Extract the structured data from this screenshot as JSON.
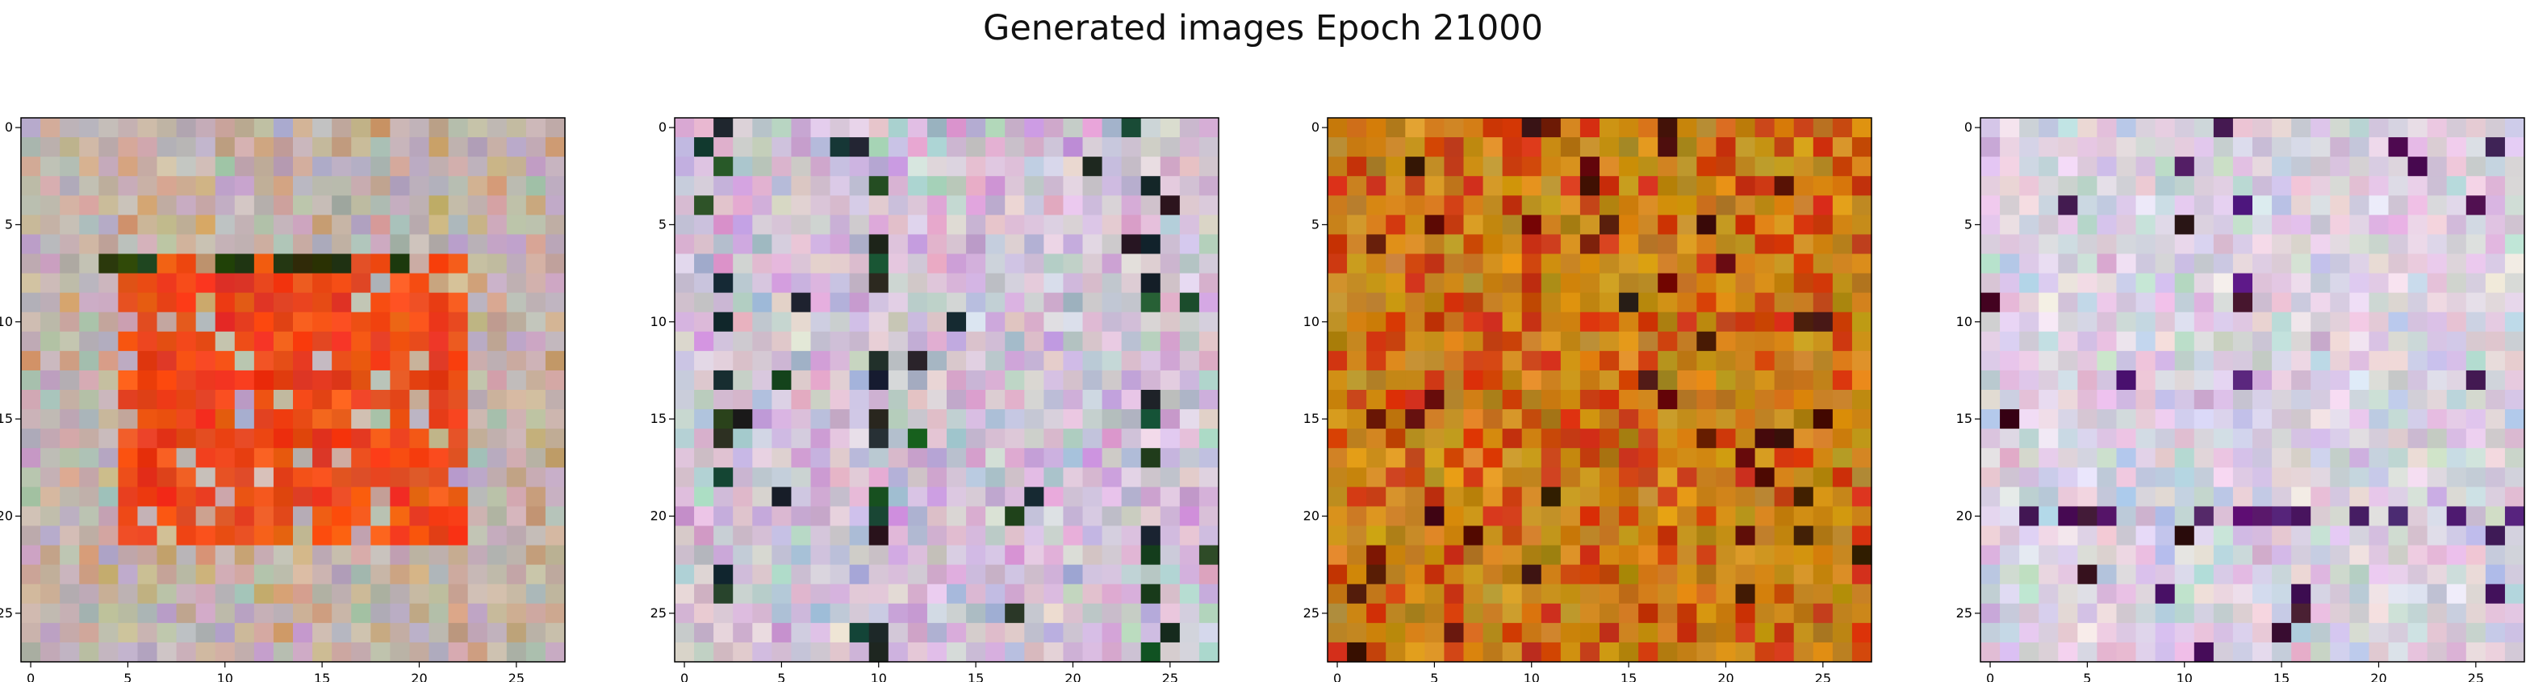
{
  "figure": {
    "title": "Generated images Epoch 21000"
  },
  "chart_data": [
    {
      "type": "heatmap",
      "subject": "generated 28x28 RGB image",
      "grid_size": [
        28,
        28
      ],
      "palette": "red/orange square on pastel noisy background",
      "colors": {
        "background": "#c8b8b8",
        "accent": "#e83418",
        "dark": "#2a2010"
      },
      "xticks": [
        0,
        5,
        10,
        15,
        20,
        25
      ],
      "yticks": [
        0,
        5,
        10,
        15,
        20,
        25
      ],
      "xlim": [
        -0.5,
        27.5
      ],
      "ylim": [
        27.5,
        -0.5
      ]
    },
    {
      "type": "heatmap",
      "subject": "generated 28x28 RGB image",
      "grid_size": [
        28,
        28
      ],
      "palette": "pastel lavender/pink noise with dark vertical strokes",
      "colors": {
        "background": "#d8c8d8",
        "accent": "#b080c8",
        "dark": "#201828"
      },
      "xticks": [
        0,
        5,
        10,
        15,
        20,
        25
      ],
      "yticks": [
        0,
        5,
        10,
        15,
        20,
        25
      ],
      "xlim": [
        -0.5,
        27.5
      ],
      "ylim": [
        27.5,
        -0.5
      ]
    },
    {
      "type": "heatmap",
      "subject": "generated 28x28 RGB image",
      "grid_size": [
        28,
        28
      ],
      "palette": "orange/amber noise with dark red spots",
      "colors": {
        "background": "#d08a18",
        "accent": "#c83a10",
        "dark": "#301008"
      },
      "xticks": [
        0,
        5,
        10,
        15,
        20,
        25
      ],
      "yticks": [
        0,
        5,
        10,
        15,
        20,
        25
      ],
      "xlim": [
        -0.5,
        27.5
      ],
      "ylim": [
        27.5,
        -0.5
      ]
    },
    {
      "type": "heatmap",
      "subject": "generated 28x28 RGB image",
      "grid_size": [
        28,
        28
      ],
      "palette": "pastel pink/mint noise with dark purple accents",
      "colors": {
        "background": "#e0d0e0",
        "accent": "#6a30c0",
        "dark": "#300818"
      },
      "xticks": [
        0,
        5,
        10,
        15,
        20,
        25
      ],
      "yticks": [
        0,
        5,
        10,
        15,
        20,
        25
      ],
      "xlim": [
        -0.5,
        27.5
      ],
      "ylim": [
        27.5,
        -0.5
      ]
    }
  ]
}
